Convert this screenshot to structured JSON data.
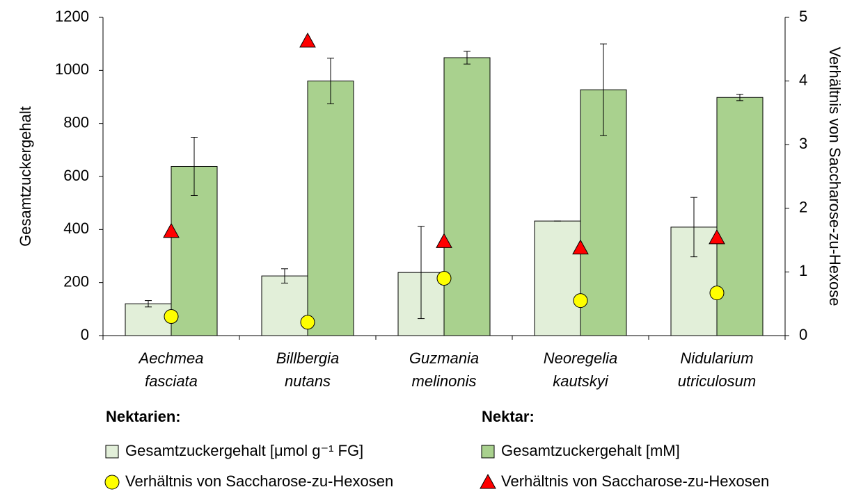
{
  "chart_data": {
    "type": "bar",
    "categories": [
      "Aechmea fasciata",
      "Billbergia nutans",
      "Guzmania melinonis",
      "Neoregelia kautskyi",
      "Nidularium utriculosum"
    ],
    "y_label": "Gesamtzuckergehalt",
    "y2_label": "Verhältnis von Saccharose-zu-Hexose",
    "ylim": [
      0,
      1200
    ],
    "yticks": [
      0,
      200,
      400,
      600,
      800,
      1000,
      1200
    ],
    "y2lim": [
      0,
      5
    ],
    "y2ticks": [
      0,
      1,
      2,
      3,
      4,
      5
    ],
    "grid": false,
    "legend_groups": [
      "Nektarien:",
      "Nektar:"
    ],
    "series": [
      {
        "name": "Gesamtzuckergehalt [μmol g⁻¹ FG]",
        "type": "bar",
        "color": "#e2efd9",
        "values": [
          120,
          225,
          238,
          432,
          409
        ],
        "errors": [
          12,
          27,
          174,
          0,
          112
        ]
      },
      {
        "name": "Gesamtzuckergehalt [mM]",
        "type": "bar",
        "color": "#a9d18e",
        "values": [
          638,
          960,
          1048,
          927,
          898
        ],
        "errors": [
          110,
          86,
          24,
          173,
          12
        ]
      },
      {
        "name": "Verhältnis von Saccharose-zu-Hexosen",
        "type": "circle",
        "axis": "y2",
        "color": "#ffff00",
        "values": [
          0.3,
          0.21,
          0.9,
          0.55,
          0.67
        ]
      },
      {
        "name": "Verhältnis von Saccharose-zu-Hexosen",
        "type": "triangle",
        "axis": "y2",
        "color": "#ff0000",
        "values": [
          1.64,
          4.63,
          1.48,
          1.38,
          1.54
        ]
      }
    ]
  }
}
